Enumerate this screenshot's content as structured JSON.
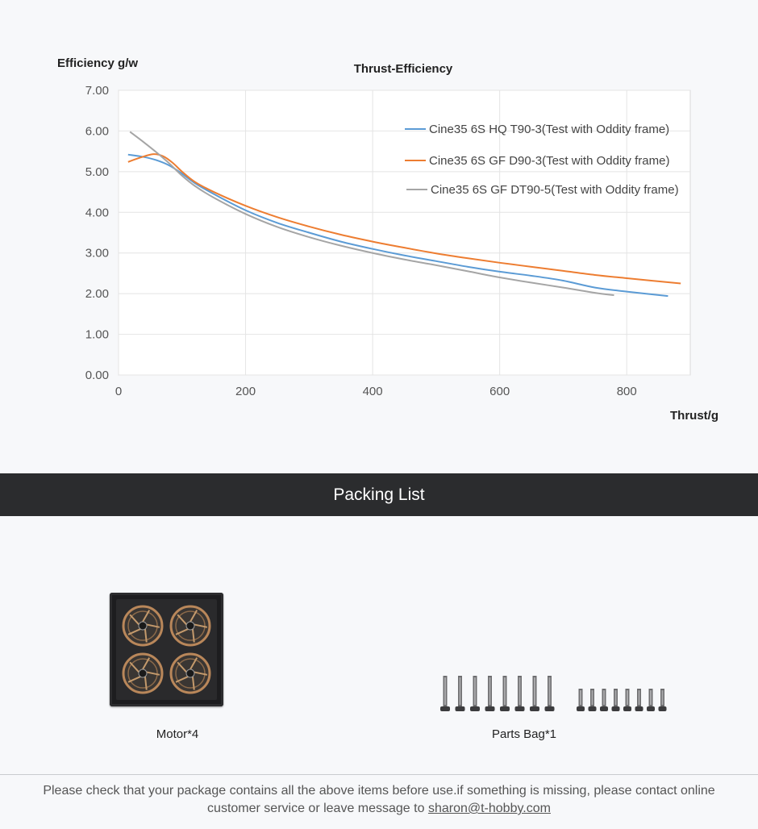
{
  "chart_data": {
    "type": "line",
    "title": "Thrust-Efficiency",
    "ylabel": "Efficiency g/w",
    "xlabel": "Thrust/g",
    "xlim": [
      0,
      900
    ],
    "ylim": [
      0,
      7
    ],
    "x_ticks": [
      "0",
      "200",
      "400",
      "600",
      "800"
    ],
    "x_tick_values": [
      0,
      200,
      400,
      600,
      800
    ],
    "y_ticks": [
      "0.00",
      "1.00",
      "2.00",
      "3.00",
      "4.00",
      "5.00",
      "6.00",
      "7.00"
    ],
    "y_tick_values": [
      0,
      1,
      2,
      3,
      4,
      5,
      6,
      7
    ],
    "grid": true,
    "legend_position": "top-right",
    "series": [
      {
        "name": "Cine35 6S HQ T90-3(Test with Oddity frame)",
        "color": "#5b9bd5",
        "points": [
          [
            15,
            5.42
          ],
          [
            40,
            5.36
          ],
          [
            60,
            5.28
          ],
          [
            80,
            5.15
          ],
          [
            100,
            4.95
          ],
          [
            120,
            4.72
          ],
          [
            150,
            4.45
          ],
          [
            200,
            4.05
          ],
          [
            250,
            3.74
          ],
          [
            300,
            3.5
          ],
          [
            350,
            3.28
          ],
          [
            400,
            3.1
          ],
          [
            450,
            2.94
          ],
          [
            500,
            2.8
          ],
          [
            550,
            2.66
          ],
          [
            600,
            2.54
          ],
          [
            650,
            2.44
          ],
          [
            700,
            2.32
          ],
          [
            750,
            2.15
          ],
          [
            800,
            2.05
          ],
          [
            865,
            1.94
          ]
        ]
      },
      {
        "name": "Cine35 6S GF D90-3(Test with Oddity frame)",
        "color": "#ed7d31",
        "points": [
          [
            15,
            5.24
          ],
          [
            35,
            5.35
          ],
          [
            55,
            5.43
          ],
          [
            70,
            5.38
          ],
          [
            85,
            5.22
          ],
          [
            100,
            5.0
          ],
          [
            120,
            4.75
          ],
          [
            150,
            4.5
          ],
          [
            200,
            4.16
          ],
          [
            250,
            3.88
          ],
          [
            300,
            3.65
          ],
          [
            350,
            3.45
          ],
          [
            400,
            3.28
          ],
          [
            450,
            3.13
          ],
          [
            500,
            2.99
          ],
          [
            550,
            2.87
          ],
          [
            600,
            2.76
          ],
          [
            650,
            2.66
          ],
          [
            700,
            2.56
          ],
          [
            750,
            2.46
          ],
          [
            800,
            2.38
          ],
          [
            885,
            2.25
          ]
        ]
      },
      {
        "name": "Cine35 6S GF DT90-5(Test with Oddity frame)",
        "color": "#a5a5a5",
        "points": [
          [
            18,
            5.98
          ],
          [
            40,
            5.72
          ],
          [
            60,
            5.47
          ],
          [
            80,
            5.2
          ],
          [
            100,
            4.9
          ],
          [
            120,
            4.65
          ],
          [
            150,
            4.36
          ],
          [
            200,
            3.96
          ],
          [
            250,
            3.64
          ],
          [
            300,
            3.39
          ],
          [
            350,
            3.18
          ],
          [
            400,
            3.0
          ],
          [
            450,
            2.84
          ],
          [
            500,
            2.7
          ],
          [
            550,
            2.55
          ],
          [
            600,
            2.4
          ],
          [
            650,
            2.27
          ],
          [
            700,
            2.15
          ],
          [
            750,
            2.02
          ],
          [
            780,
            1.96
          ]
        ]
      }
    ]
  },
  "packing": {
    "title": "Packing List",
    "items": [
      {
        "label": "Motor*4"
      },
      {
        "label": "Parts Bag*1"
      }
    ]
  },
  "footer": {
    "text": "Please check that your package contains all the above items before use.if something is missing, please contact online customer service or leave message to ",
    "email": "sharon@t-hobby.com"
  }
}
